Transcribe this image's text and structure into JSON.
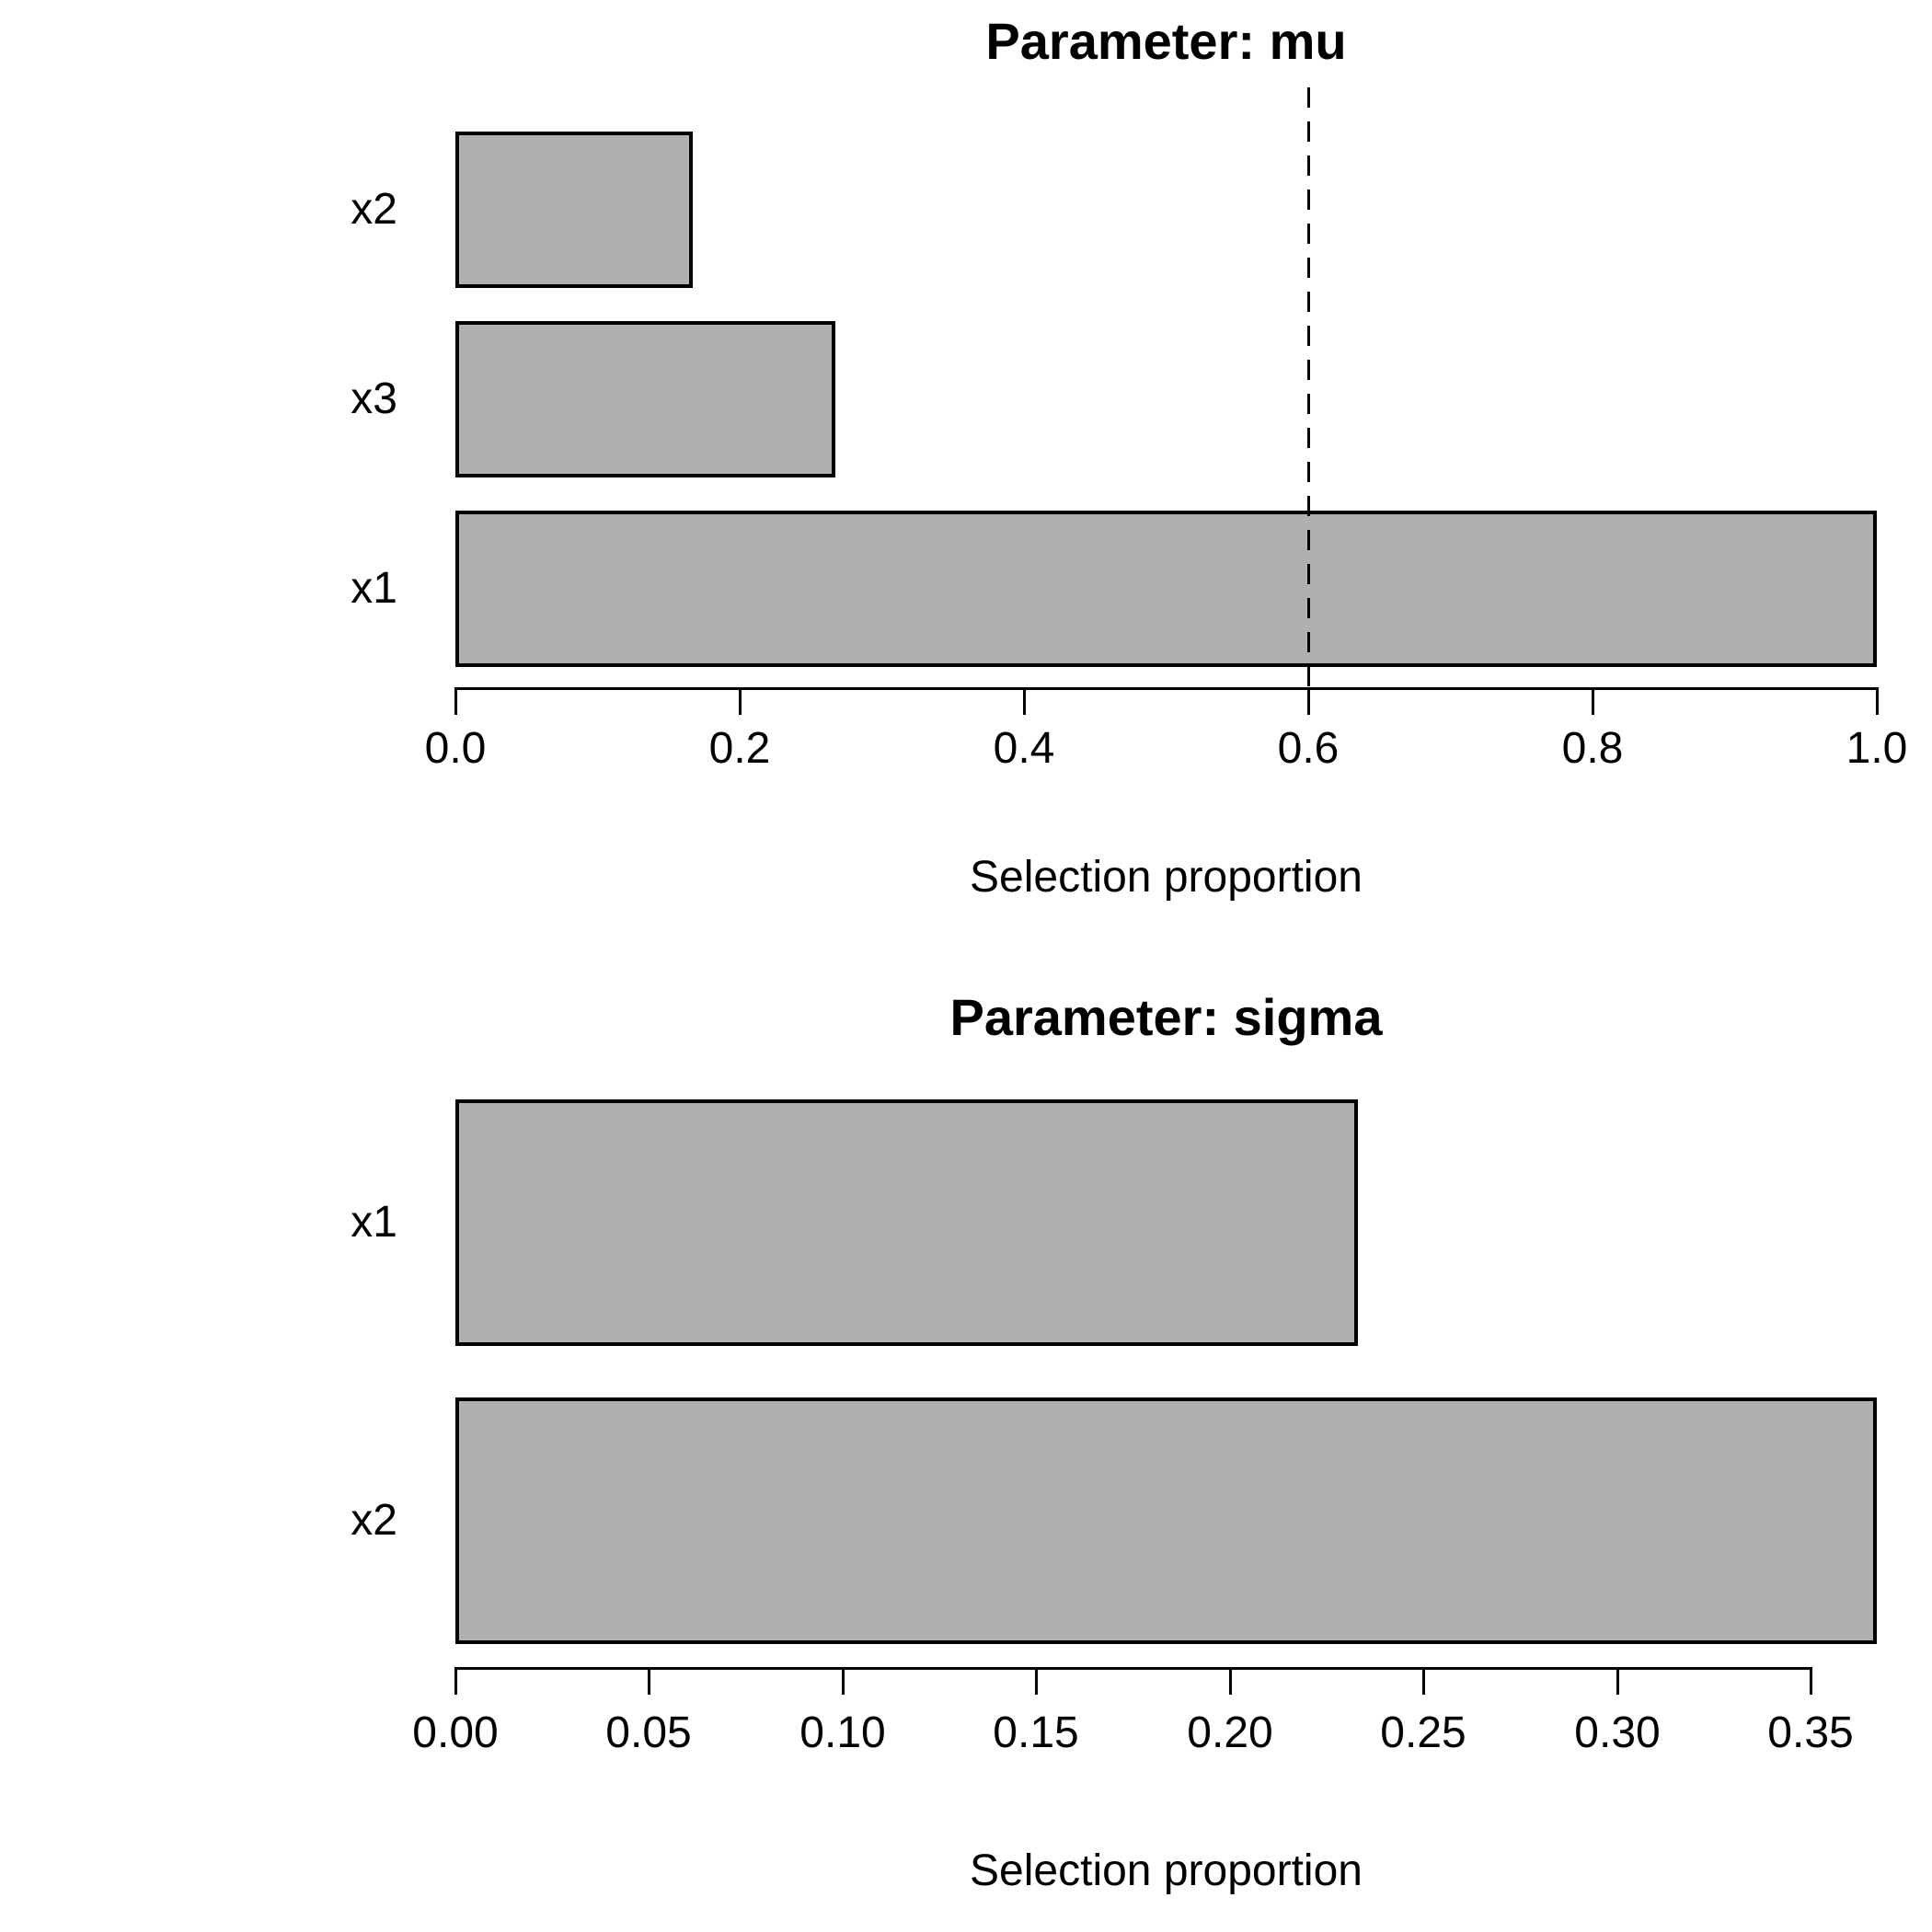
{
  "figure": {
    "background": "#ffffff",
    "bar_fill": "#b0b0b0",
    "bar_border": "#000000"
  },
  "chart_data": [
    {
      "type": "bar",
      "orientation": "horizontal",
      "title": "Parameter: mu",
      "xlabel": "Selection proportion",
      "categories": [
        "x2",
        "x3",
        "x1"
      ],
      "values": [
        0.167,
        0.267,
        1.0
      ],
      "xlim": [
        0,
        1.0
      ],
      "xticks": [
        0.0,
        0.2,
        0.4,
        0.6,
        0.8,
        1.0
      ],
      "xtick_labels": [
        "0.0",
        "0.2",
        "0.4",
        "0.6",
        "0.8",
        "1.0"
      ],
      "threshold_line": {
        "value": 0.6,
        "style": "dashed",
        "color": "#000000"
      },
      "grid": false,
      "legend": null
    },
    {
      "type": "bar",
      "orientation": "horizontal",
      "title": "Parameter: sigma",
      "xlabel": "Selection proportion",
      "categories": [
        "x1",
        "x2"
      ],
      "values": [
        0.233,
        0.367
      ],
      "xlim": [
        0,
        0.367
      ],
      "xticks": [
        0.0,
        0.05,
        0.1,
        0.15,
        0.2,
        0.25,
        0.3,
        0.35
      ],
      "xtick_labels": [
        "0.00",
        "0.05",
        "0.10",
        "0.15",
        "0.20",
        "0.25",
        "0.30",
        "0.35"
      ],
      "threshold_line": null,
      "grid": false,
      "legend": null
    }
  ]
}
